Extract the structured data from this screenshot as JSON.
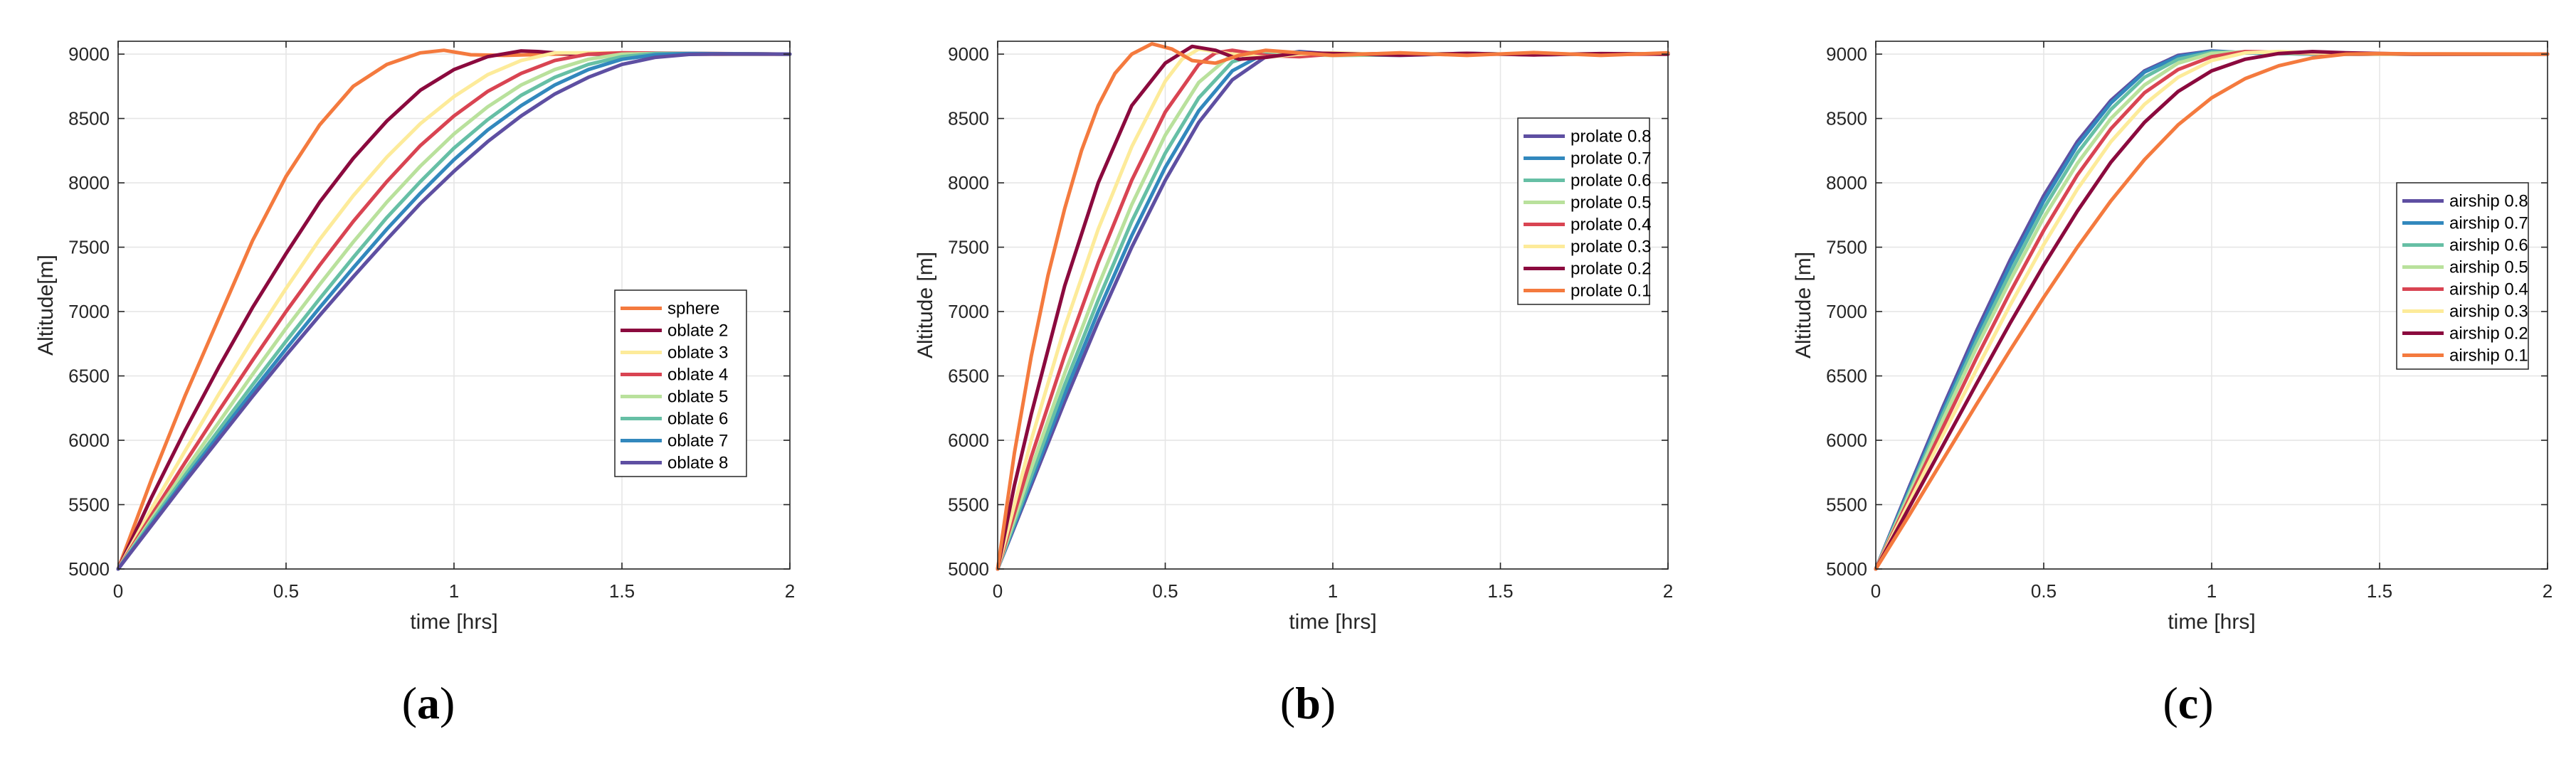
{
  "chart_data": [
    {
      "type": "line",
      "panel_label": "a",
      "xlabel": "time [hrs]",
      "ylabel": "Altitude[m]",
      "xlim": [
        0,
        2
      ],
      "ylim": [
        5000,
        9100
      ],
      "xticks": [
        0,
        0.5,
        1,
        1.5,
        2
      ],
      "xtick_labels": [
        "0",
        "0.5",
        "1",
        "1.5",
        "2"
      ],
      "yticks": [
        5000,
        5500,
        6000,
        6500,
        7000,
        7500,
        8000,
        8500,
        9000
      ],
      "ytick_labels": [
        "5000",
        "5500",
        "6000",
        "6500",
        "7000",
        "7500",
        "8000",
        "8500",
        "9000"
      ],
      "grid": true,
      "legend_position": "center-right",
      "series": [
        {
          "name": "sphere",
          "color": "#F47A3E",
          "x": [
            0,
            0.1,
            0.2,
            0.3,
            0.4,
            0.5,
            0.6,
            0.7,
            0.8,
            0.9,
            0.97,
            1.05,
            1.15,
            1.3,
            2
          ],
          "y": [
            5000,
            5700,
            6350,
            6950,
            7550,
            8050,
            8450,
            8750,
            8920,
            9010,
            9030,
            8995,
            8990,
            9000,
            9000
          ]
        },
        {
          "name": "oblate 2",
          "color": "#8B0A3E",
          "x": [
            0,
            0.1,
            0.2,
            0.3,
            0.4,
            0.5,
            0.6,
            0.7,
            0.8,
            0.9,
            1.0,
            1.1,
            1.2,
            1.25,
            1.35,
            2
          ],
          "y": [
            5000,
            5560,
            6080,
            6570,
            7030,
            7450,
            7850,
            8190,
            8480,
            8720,
            8880,
            8980,
            9025,
            9020,
            9000,
            9000
          ]
        },
        {
          "name": "oblate 3",
          "color": "#FDEB9A",
          "x": [
            0,
            0.1,
            0.2,
            0.3,
            0.4,
            0.5,
            0.6,
            0.7,
            0.8,
            0.9,
            1.0,
            1.1,
            1.2,
            1.3,
            1.4,
            2
          ],
          "y": [
            5000,
            5470,
            5920,
            6360,
            6780,
            7180,
            7560,
            7900,
            8200,
            8460,
            8670,
            8840,
            8950,
            9010,
            9010,
            9000
          ]
        },
        {
          "name": "oblate 4",
          "color": "#D94452",
          "x": [
            0,
            0.1,
            0.2,
            0.3,
            0.4,
            0.5,
            0.6,
            0.7,
            0.8,
            0.9,
            1.0,
            1.1,
            1.2,
            1.3,
            1.4,
            1.5,
            2
          ],
          "y": [
            5000,
            5420,
            5830,
            6230,
            6620,
            7000,
            7360,
            7700,
            8010,
            8290,
            8520,
            8710,
            8850,
            8950,
            9000,
            9010,
            9000
          ]
        },
        {
          "name": "oblate 5",
          "color": "#B9E19C",
          "x": [
            0,
            0.1,
            0.2,
            0.3,
            0.4,
            0.5,
            0.6,
            0.7,
            0.8,
            0.9,
            1.0,
            1.1,
            1.2,
            1.3,
            1.4,
            1.5,
            1.6,
            2
          ],
          "y": [
            5000,
            5390,
            5770,
            6140,
            6510,
            6870,
            7210,
            7540,
            7850,
            8130,
            8380,
            8590,
            8760,
            8880,
            8960,
            9000,
            9005,
            9000
          ]
        },
        {
          "name": "oblate 6",
          "color": "#66BFA5",
          "x": [
            0,
            0.1,
            0.2,
            0.3,
            0.4,
            0.5,
            0.6,
            0.7,
            0.8,
            0.9,
            1.0,
            1.1,
            1.2,
            1.3,
            1.4,
            1.5,
            1.6,
            1.7,
            2
          ],
          "y": [
            5000,
            5370,
            5730,
            6080,
            6430,
            6770,
            7100,
            7420,
            7730,
            8010,
            8270,
            8490,
            8680,
            8820,
            8920,
            8980,
            9005,
            9005,
            9000
          ]
        },
        {
          "name": "oblate 7",
          "color": "#3288BD",
          "x": [
            0,
            0.1,
            0.2,
            0.3,
            0.4,
            0.5,
            0.6,
            0.7,
            0.8,
            0.9,
            1.0,
            1.1,
            1.2,
            1.3,
            1.4,
            1.5,
            1.6,
            1.7,
            1.8,
            2
          ],
          "y": [
            5000,
            5350,
            5700,
            6040,
            6380,
            6710,
            7030,
            7340,
            7640,
            7920,
            8180,
            8410,
            8600,
            8760,
            8880,
            8960,
            8995,
            9005,
            9003,
            9000
          ]
        },
        {
          "name": "oblate 8",
          "color": "#5E4FA2",
          "x": [
            0,
            0.1,
            0.2,
            0.3,
            0.4,
            0.5,
            0.6,
            0.7,
            0.8,
            0.9,
            1.0,
            1.1,
            1.2,
            1.3,
            1.4,
            1.5,
            1.6,
            1.7,
            1.8,
            1.9,
            2
          ],
          "y": [
            5000,
            5340,
            5680,
            6010,
            6340,
            6660,
            6970,
            7270,
            7560,
            7840,
            8090,
            8320,
            8520,
            8690,
            8820,
            8920,
            8975,
            8998,
            9002,
            9001,
            9000
          ]
        }
      ]
    },
    {
      "type": "line",
      "panel_label": "b",
      "xlabel": "time [hrs]",
      "ylabel": "Altitude [m]",
      "xlim": [
        0,
        2
      ],
      "ylim": [
        5000,
        9100
      ],
      "xticks": [
        0,
        0.5,
        1,
        1.5,
        2
      ],
      "xtick_labels": [
        "0",
        "0.5",
        "1",
        "1.5",
        "2"
      ],
      "yticks": [
        5000,
        5500,
        6000,
        6500,
        7000,
        7500,
        8000,
        8500,
        9000
      ],
      "ytick_labels": [
        "5000",
        "5500",
        "6000",
        "6500",
        "7000",
        "7500",
        "8000",
        "8500",
        "9000"
      ],
      "grid": true,
      "legend_position": "center-right",
      "series": [
        {
          "name": "prolate 0.8",
          "color": "#5E4FA2",
          "x": [
            0,
            0.1,
            0.2,
            0.3,
            0.4,
            0.5,
            0.6,
            0.7,
            0.8,
            0.9,
            1.0,
            1.2,
            1.4,
            1.6,
            1.8,
            2
          ],
          "y": [
            5000,
            5650,
            6300,
            6920,
            7500,
            8020,
            8470,
            8800,
            8980,
            9020,
            9000,
            8990,
            9005,
            8995,
            9003,
            9000
          ]
        },
        {
          "name": "prolate 0.7",
          "color": "#3288BD",
          "x": [
            0,
            0.1,
            0.2,
            0.3,
            0.4,
            0.5,
            0.6,
            0.7,
            0.8,
            0.9,
            1.0,
            1.2,
            1.4,
            1.6,
            1.8,
            2
          ],
          "y": [
            5000,
            5680,
            6360,
            7000,
            7590,
            8120,
            8560,
            8870,
            9010,
            9015,
            8995,
            8992,
            9006,
            8995,
            9003,
            9000
          ]
        },
        {
          "name": "prolate 0.6",
          "color": "#66BFA5",
          "x": [
            0,
            0.1,
            0.2,
            0.3,
            0.4,
            0.5,
            0.6,
            0.7,
            0.8,
            0.9,
            1.0,
            1.2,
            1.4,
            1.6,
            1.8,
            2
          ],
          "y": [
            5000,
            5720,
            6430,
            7090,
            7700,
            8230,
            8660,
            8940,
            9020,
            9005,
            8990,
            8995,
            9005,
            8996,
            9003,
            9000
          ]
        },
        {
          "name": "prolate 0.5",
          "color": "#B9E19C",
          "x": [
            0,
            0.1,
            0.2,
            0.3,
            0.4,
            0.5,
            0.6,
            0.7,
            0.8,
            0.9,
            1.0,
            1.2,
            1.4,
            1.6,
            1.8,
            2
          ],
          "y": [
            5000,
            5780,
            6520,
            7200,
            7830,
            8370,
            8780,
            9000,
            9025,
            8995,
            8990,
            9000,
            9004,
            8996,
            9003,
            9000
          ]
        },
        {
          "name": "prolate 0.4",
          "color": "#D94452",
          "x": [
            0,
            0.1,
            0.2,
            0.3,
            0.4,
            0.5,
            0.6,
            0.65,
            0.7,
            0.8,
            0.9,
            1.0,
            1.2,
            1.4,
            1.6,
            1.8,
            2
          ],
          "y": [
            5000,
            5870,
            6660,
            7380,
            8020,
            8550,
            8920,
            9010,
            9030,
            8990,
            8980,
            9000,
            9005,
            8996,
            9004,
            8998,
            9000
          ]
        },
        {
          "name": "prolate 0.3",
          "color": "#FDEB9A",
          "x": [
            0,
            0.1,
            0.2,
            0.3,
            0.4,
            0.5,
            0.55,
            0.6,
            0.7,
            0.8,
            0.9,
            1.0,
            1.2,
            1.4,
            1.6,
            1.8,
            2
          ],
          "y": [
            5000,
            6000,
            6880,
            7640,
            8280,
            8790,
            8960,
            9040,
            9000,
            8975,
            9000,
            9010,
            8995,
            9005,
            8995,
            9005,
            9000
          ]
        },
        {
          "name": "prolate 0.2",
          "color": "#8B0A3E",
          "x": [
            0,
            0.05,
            0.1,
            0.2,
            0.3,
            0.4,
            0.5,
            0.58,
            0.65,
            0.72,
            0.8,
            0.9,
            1.0,
            1.2,
            1.4,
            1.6,
            1.8,
            2
          ],
          "y": [
            5000,
            5650,
            6200,
            7200,
            8000,
            8600,
            8930,
            9060,
            9030,
            8960,
            8975,
            9010,
            9005,
            8992,
            9006,
            8994,
            9004,
            9000
          ]
        },
        {
          "name": "prolate 0.1",
          "color": "#F47A3E",
          "x": [
            0,
            0.05,
            0.1,
            0.15,
            0.2,
            0.25,
            0.3,
            0.35,
            0.4,
            0.46,
            0.52,
            0.58,
            0.65,
            0.72,
            0.8,
            0.9,
            1.0,
            1.2,
            1.4,
            1.6,
            1.8,
            2
          ],
          "y": [
            5000,
            5900,
            6650,
            7280,
            7800,
            8250,
            8600,
            8850,
            9000,
            9080,
            9040,
            8950,
            8930,
            8990,
            9030,
            9010,
            8990,
            9010,
            8990,
            9012,
            8990,
            9010
          ]
        }
      ]
    },
    {
      "type": "line",
      "panel_label": "c",
      "xlabel": "time [hrs]",
      "ylabel": "Altitude [m]",
      "xlim": [
        0,
        2
      ],
      "ylim": [
        5000,
        9100
      ],
      "xticks": [
        0,
        0.5,
        1,
        1.5,
        2
      ],
      "xtick_labels": [
        "0",
        "0.5",
        "1",
        "1.5",
        "2"
      ],
      "yticks": [
        5000,
        5500,
        6000,
        6500,
        7000,
        7500,
        8000,
        8500,
        9000
      ],
      "ytick_labels": [
        "5000",
        "5500",
        "6000",
        "6500",
        "7000",
        "7500",
        "8000",
        "8500",
        "9000"
      ],
      "grid": true,
      "legend_position": "center-right",
      "series": [
        {
          "name": "airship 0.8",
          "color": "#5E4FA2",
          "x": [
            0,
            0.1,
            0.2,
            0.3,
            0.4,
            0.5,
            0.6,
            0.7,
            0.8,
            0.9,
            1.0,
            1.1,
            1.3,
            2
          ],
          "y": [
            5000,
            5640,
            6260,
            6850,
            7400,
            7900,
            8320,
            8640,
            8870,
            8990,
            9025,
            9010,
            9000,
            9000
          ]
        },
        {
          "name": "airship 0.7",
          "color": "#3288BD",
          "x": [
            0,
            0.1,
            0.2,
            0.3,
            0.4,
            0.5,
            0.6,
            0.7,
            0.8,
            0.9,
            1.0,
            1.1,
            1.3,
            2
          ],
          "y": [
            5000,
            5620,
            6230,
            6810,
            7360,
            7860,
            8290,
            8620,
            8860,
            8980,
            9022,
            9010,
            9000,
            9000
          ]
        },
        {
          "name": "airship 0.6",
          "color": "#66BFA5",
          "x": [
            0,
            0.1,
            0.2,
            0.3,
            0.4,
            0.5,
            0.6,
            0.7,
            0.8,
            0.9,
            1.0,
            1.1,
            1.2,
            1.4,
            2
          ],
          "y": [
            5000,
            5600,
            6200,
            6770,
            7300,
            7800,
            8230,
            8570,
            8820,
            8960,
            9015,
            9015,
            9005,
            9000,
            9000
          ]
        },
        {
          "name": "airship 0.5",
          "color": "#B9E19C",
          "x": [
            0,
            0.1,
            0.2,
            0.3,
            0.4,
            0.5,
            0.6,
            0.7,
            0.8,
            0.9,
            1.0,
            1.1,
            1.2,
            1.4,
            2
          ],
          "y": [
            5000,
            5580,
            6160,
            6720,
            7240,
            7730,
            8150,
            8500,
            8760,
            8930,
            9005,
            9018,
            9008,
            9000,
            9000
          ]
        },
        {
          "name": "airship 0.4",
          "color": "#D94452",
          "x": [
            0,
            0.1,
            0.2,
            0.3,
            0.4,
            0.5,
            0.6,
            0.7,
            0.8,
            0.9,
            1.0,
            1.1,
            1.2,
            1.4,
            2
          ],
          "y": [
            5000,
            5550,
            6100,
            6640,
            7150,
            7630,
            8060,
            8420,
            8700,
            8880,
            8980,
            9020,
            9015,
            9000,
            9000
          ]
        },
        {
          "name": "airship 0.3",
          "color": "#FDEB9A",
          "x": [
            0,
            0.1,
            0.2,
            0.3,
            0.4,
            0.5,
            0.6,
            0.7,
            0.8,
            0.9,
            1.0,
            1.1,
            1.2,
            1.3,
            1.5,
            2
          ],
          "y": [
            5000,
            5520,
            6040,
            6550,
            7050,
            7520,
            7950,
            8320,
            8610,
            8820,
            8950,
            9010,
            9020,
            9010,
            9000,
            9000
          ]
        },
        {
          "name": "airship 0.2",
          "color": "#8B0A3E",
          "x": [
            0,
            0.1,
            0.2,
            0.3,
            0.4,
            0.5,
            0.6,
            0.7,
            0.8,
            0.9,
            1.0,
            1.1,
            1.2,
            1.3,
            1.4,
            1.6,
            2
          ],
          "y": [
            5000,
            5480,
            5960,
            6440,
            6910,
            7360,
            7780,
            8160,
            8470,
            8710,
            8870,
            8960,
            9005,
            9020,
            9010,
            9000,
            9000
          ]
        },
        {
          "name": "airship 0.1",
          "color": "#F47A3E",
          "x": [
            0,
            0.1,
            0.2,
            0.3,
            0.4,
            0.5,
            0.6,
            0.7,
            0.8,
            0.9,
            1.0,
            1.1,
            1.2,
            1.3,
            1.4,
            1.5,
            1.6,
            2
          ],
          "y": [
            5000,
            5420,
            5850,
            6280,
            6700,
            7110,
            7500,
            7860,
            8180,
            8450,
            8660,
            8810,
            8910,
            8970,
            9000,
            9005,
            9002,
            9000
          ]
        }
      ]
    }
  ]
}
